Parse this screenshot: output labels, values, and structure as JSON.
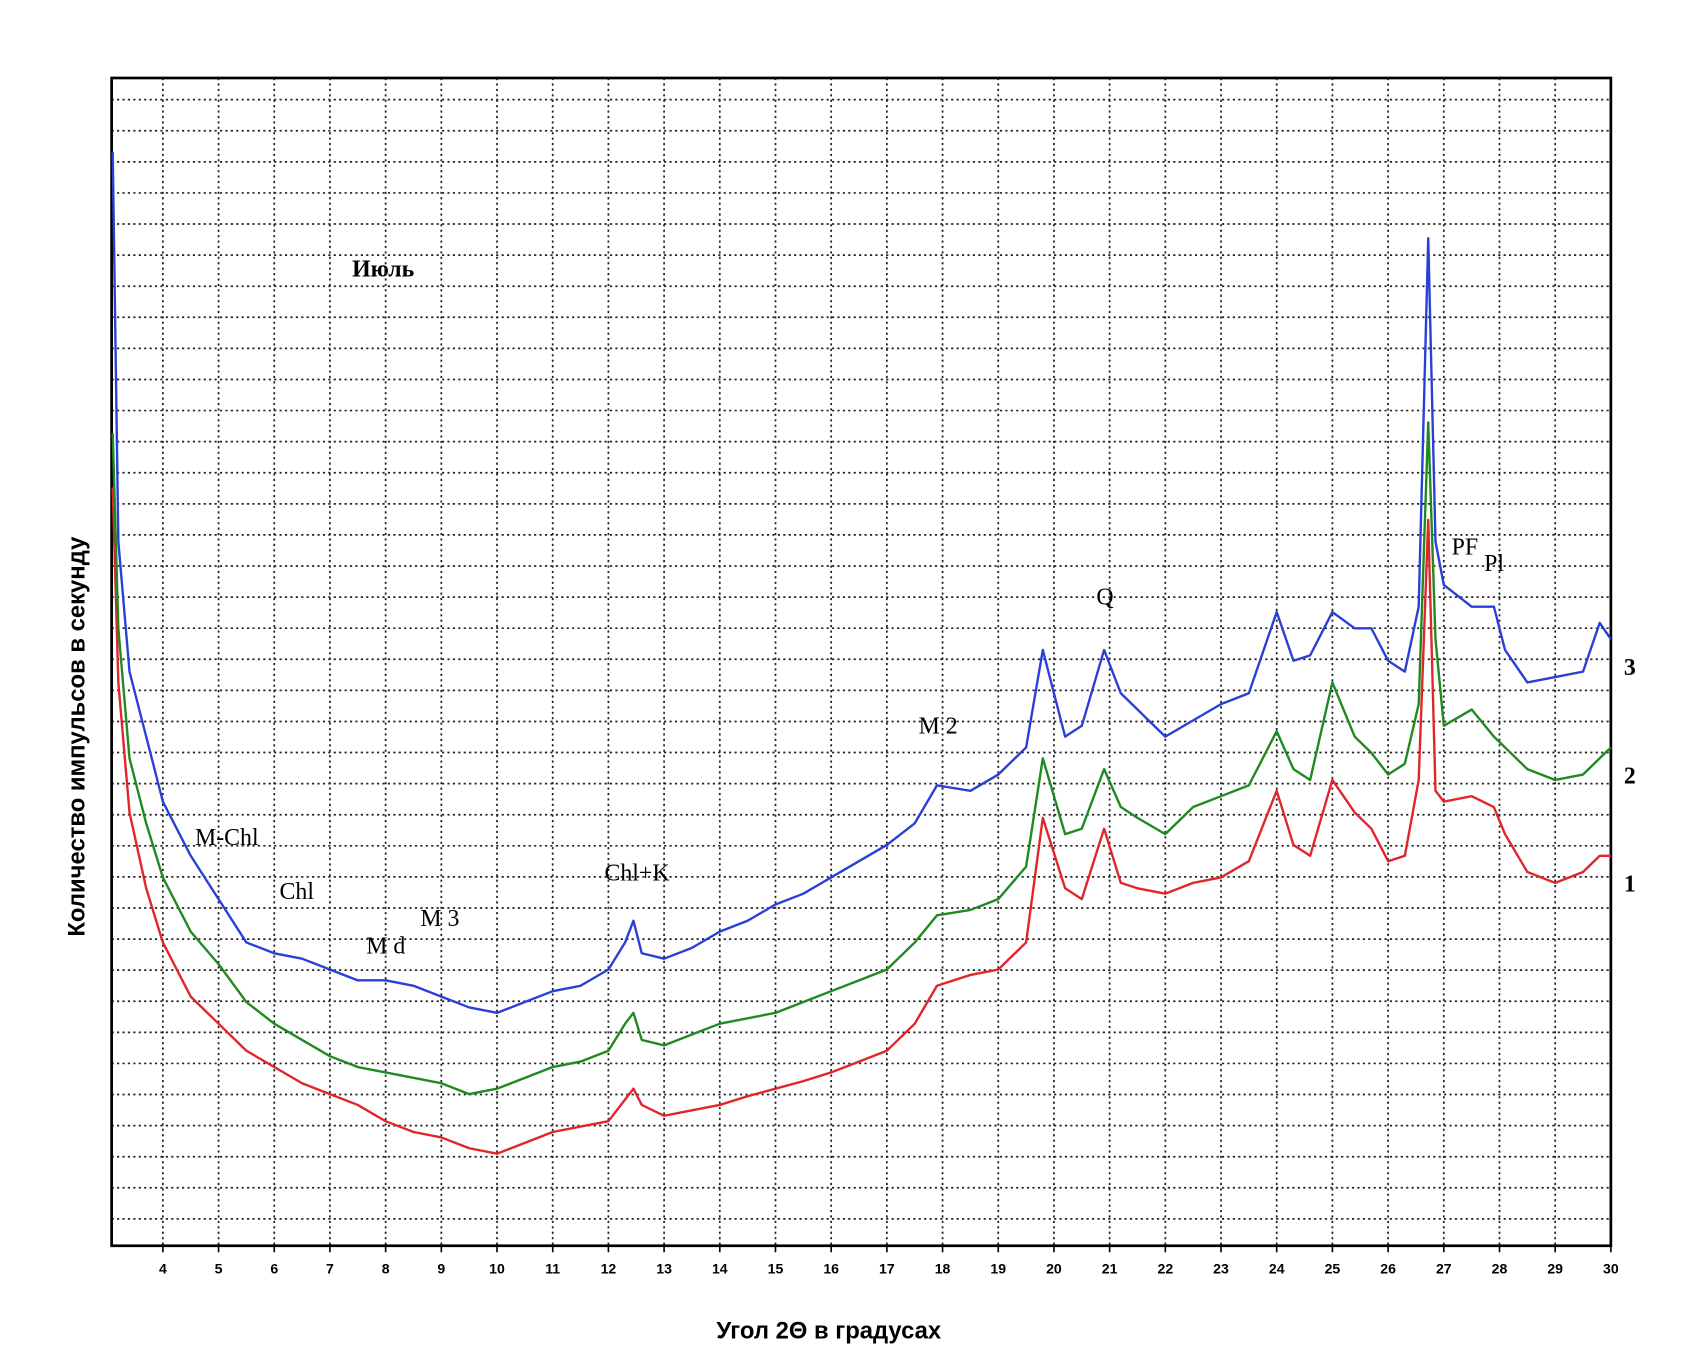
{
  "chart_data": {
    "type": "line",
    "title": "Июль",
    "x_label": "Угол 2Θ в градусах",
    "y_label": "Количество импульсов в секунду",
    "xlim": [
      3.08,
      30
    ],
    "ylim": [
      0,
      1078
    ],
    "xticks": [
      4,
      5,
      6,
      7,
      8,
      9,
      10,
      11,
      12,
      13,
      14,
      15,
      16,
      17,
      18,
      19,
      20,
      21,
      22,
      23,
      24,
      25,
      26,
      27,
      28,
      29,
      30
    ],
    "grid": true,
    "annotations": [
      "M-Chl",
      "Chl",
      "M d",
      "M 3",
      "Chl+K",
      "M 2",
      "Q",
      "PF",
      "Pl"
    ],
    "x": [
      3.1,
      3.2,
      3.4,
      3.7,
      4,
      4.5,
      5,
      5.5,
      6,
      6.5,
      7,
      7.5,
      8,
      8.5,
      9,
      9.5,
      10,
      10.5,
      11,
      11.5,
      12,
      12.3,
      12.45,
      12.6,
      13,
      13.5,
      14,
      14.5,
      15,
      15.5,
      16,
      16.5,
      17,
      17.5,
      17.9,
      18.5,
      19,
      19.5,
      19.8,
      20.2,
      20.5,
      20.9,
      21.2,
      21.5,
      22,
      22.5,
      23,
      23.5,
      24,
      24.3,
      24.6,
      25,
      25.4,
      25.7,
      26,
      26.3,
      26.55,
      26.72,
      26.85,
      27,
      27.5,
      27.9,
      28.1,
      28.5,
      29,
      29.5,
      29.8,
      30
    ],
    "series": [
      {
        "name": "1",
        "color": "#e0262b",
        "values": [
          700,
          520,
          400,
          330,
          280,
          230,
          205,
          180,
          165,
          150,
          140,
          130,
          115,
          105,
          100,
          90,
          85,
          95,
          105,
          110,
          115,
          135,
          145,
          130,
          120,
          125,
          130,
          138,
          145,
          152,
          160,
          170,
          180,
          205,
          240,
          250,
          255,
          280,
          395,
          330,
          320,
          385,
          335,
          330,
          325,
          335,
          340,
          355,
          420,
          370,
          360,
          430,
          400,
          385,
          355,
          360,
          430,
          670,
          420,
          410,
          415,
          405,
          380,
          345,
          335,
          345,
          360,
          360
        ]
      },
      {
        "name": "2",
        "color": "#1f8a1f",
        "values": [
          750,
          570,
          450,
          390,
          340,
          290,
          260,
          225,
          205,
          190,
          175,
          165,
          160,
          155,
          150,
          140,
          145,
          155,
          165,
          170,
          180,
          205,
          215,
          190,
          185,
          195,
          205,
          210,
          215,
          225,
          235,
          245,
          255,
          280,
          305,
          310,
          320,
          350,
          450,
          380,
          385,
          440,
          405,
          395,
          380,
          405,
          415,
          425,
          475,
          440,
          430,
          520,
          470,
          455,
          435,
          445,
          500,
          760,
          560,
          480,
          495,
          470,
          460,
          440,
          430,
          435,
          450,
          460
        ]
      },
      {
        "name": "3",
        "color": "#2a3fd6",
        "values": [
          1010,
          650,
          530,
          470,
          410,
          360,
          320,
          280,
          270,
          265,
          255,
          245,
          245,
          240,
          230,
          220,
          215,
          225,
          235,
          240,
          255,
          280,
          300,
          270,
          265,
          275,
          290,
          300,
          315,
          325,
          340,
          355,
          370,
          390,
          425,
          420,
          435,
          460,
          550,
          470,
          480,
          550,
          510,
          495,
          470,
          485,
          500,
          510,
          585,
          540,
          545,
          585,
          570,
          570,
          540,
          530,
          590,
          930,
          650,
          610,
          590,
          590,
          550,
          520,
          525,
          530,
          575,
          560
        ]
      }
    ]
  }
}
